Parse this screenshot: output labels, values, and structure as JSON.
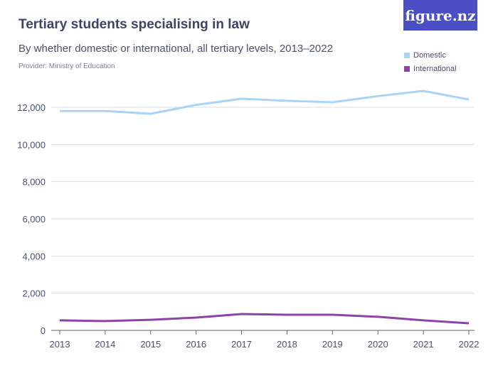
{
  "logo": "figure.nz",
  "chart_data": {
    "type": "line",
    "title": "Tertiary students specialising in law",
    "subtitle": "By whether domestic or international, all tertiary levels, 2013–2022",
    "provider": "Provider: Ministry of Education",
    "x": [
      2013,
      2014,
      2015,
      2016,
      2017,
      2018,
      2019,
      2020,
      2021,
      2022
    ],
    "ylim": [
      0,
      12000
    ],
    "yticks": [
      0,
      2000,
      4000,
      6000,
      8000,
      10000,
      12000
    ],
    "ytick_labels": [
      "0",
      "2,000",
      "4,000",
      "6,000",
      "8,000",
      "10,000",
      "12,000"
    ],
    "grid": true,
    "legend_placement": "top-right",
    "series": [
      {
        "name": "Domestic",
        "color": "#a9d4f5",
        "values": [
          11800,
          11800,
          11650,
          12130,
          12460,
          12350,
          12270,
          12600,
          12880,
          12420
        ]
      },
      {
        "name": "International",
        "color": "#8e44a6",
        "values": [
          540,
          500,
          570,
          690,
          880,
          840,
          840,
          730,
          540,
          380
        ]
      }
    ]
  }
}
